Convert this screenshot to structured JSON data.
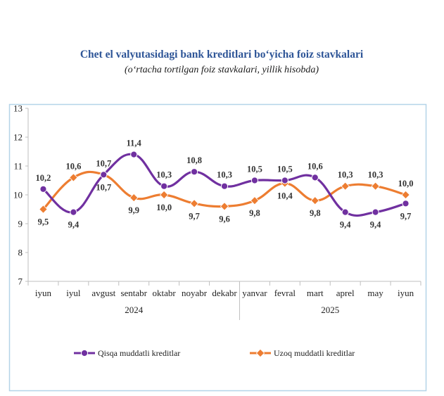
{
  "chart_data": {
    "type": "line",
    "title": "Chet el valyutasidagi bank kreditlari bo‘yicha foiz stavkalari",
    "subtitle": "(o‘rtacha tortilgan foiz stavkalari, yillik hisobda)",
    "categories": [
      "iyun",
      "iyul",
      "avgust",
      "sentabr",
      "oktabr",
      "noyabr",
      "dekabr",
      "yanvar",
      "fevral",
      "mart",
      "aprel",
      "may",
      "iyun"
    ],
    "year_groups": [
      {
        "label": "2024",
        "from": 0,
        "to": 6
      },
      {
        "label": "2025",
        "from": 7,
        "to": 12
      }
    ],
    "ylim": [
      7,
      13
    ],
    "yticks": [
      7,
      8,
      9,
      10,
      11,
      12,
      13
    ],
    "grid": false,
    "legend_position": "bottom",
    "series": [
      {
        "name": "Qisqa muddatli kreditlar",
        "color": "#7030a0",
        "marker": "circle",
        "values": [
          10.2,
          9.4,
          10.7,
          11.4,
          10.3,
          10.8,
          10.3,
          10.5,
          10.5,
          10.6,
          9.4,
          9.4,
          9.7
        ],
        "labels": [
          "10,2",
          "9,4",
          "10,7",
          "11,4",
          "10,3",
          "10,8",
          "10,3",
          "10,5",
          "10,5",
          "10,6",
          "9,4",
          "9,4",
          "9,7"
        ],
        "label_pos": [
          "above",
          "below",
          "below",
          "above",
          "above",
          "above",
          "above",
          "above",
          "above",
          "above",
          "below",
          "below",
          "below"
        ]
      },
      {
        "name": "Uzoq muddatli kreditlar",
        "color": "#ed7d31",
        "marker": "diamond",
        "values": [
          9.5,
          10.6,
          10.7,
          9.9,
          10.0,
          9.7,
          9.6,
          9.8,
          10.4,
          9.8,
          10.3,
          10.3,
          10.0
        ],
        "labels": [
          "9,5",
          "10,6",
          "10,7",
          "9,9",
          "10,0",
          "9,7",
          "9,6",
          "9,8",
          "10,4",
          "9,8",
          "10,3",
          "10,3",
          "10,0"
        ],
        "label_pos": [
          "below",
          "above",
          "above",
          "below",
          "below",
          "below",
          "below",
          "below",
          "below",
          "below",
          "above",
          "above",
          "above"
        ]
      }
    ]
  }
}
